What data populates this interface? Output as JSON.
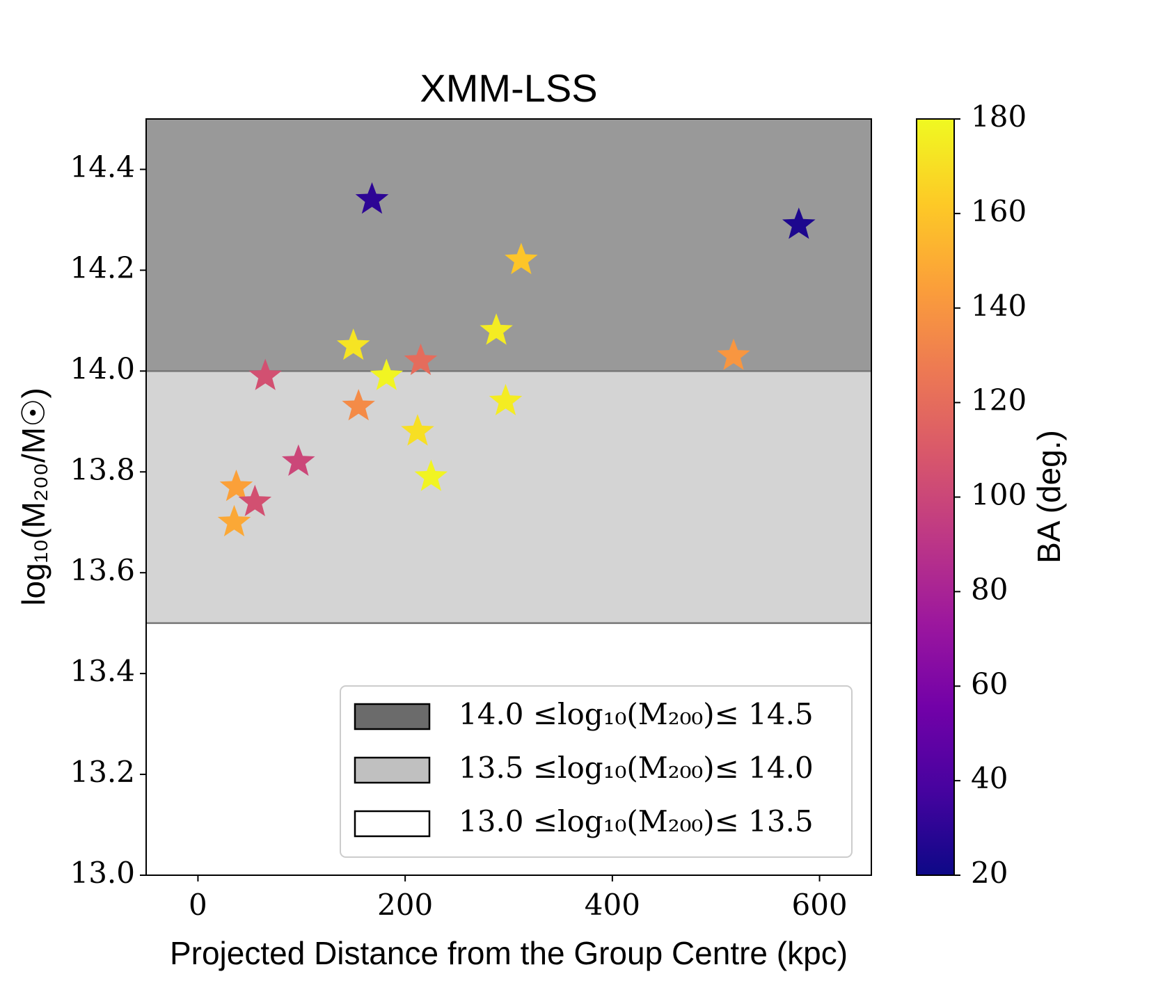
{
  "chart_data": {
    "type": "scatter",
    "title": "XMM-LSS",
    "x_label": "Projected Distance from the Group Centre (kpc)",
    "y_label": "log₁₀(M₂₀₀/M☉)",
    "colorbar_label": "BA (deg.)",
    "xlim": [
      -50,
      650
    ],
    "xticks": [
      0,
      200,
      400,
      600
    ],
    "ylim": [
      13.0,
      14.5
    ],
    "yticks": [
      {
        "value": 13.0,
        "label": "13.0"
      },
      13.2,
      13.4,
      13.6,
      13.8,
      {
        "value": 14.0,
        "label": "14.0"
      },
      14.2,
      14.4
    ],
    "clim": [
      20,
      180
    ],
    "cticks": [
      20,
      40,
      60,
      80,
      100,
      120,
      140,
      160,
      180
    ],
    "colormap": [
      "#0d0887",
      "#46039f",
      "#7201a8",
      "#9c179e",
      "#bd3786",
      "#d8576b",
      "#ed7953",
      "#fb9f3a",
      "#fdca26",
      "#f0f921"
    ],
    "bands": [
      {
        "name": "14.0 ≤log₁₀(M₂₀₀)≤ 14.5",
        "range": [
          14.0,
          14.5
        ],
        "color": "#999999",
        "legend_color": "#6b6b6b"
      },
      {
        "name": "13.5 ≤log₁₀(M₂₀₀)≤ 14.0",
        "range": [
          13.5,
          14.0
        ],
        "color": "#d4d4d4",
        "legend_color": "#c0c0c0"
      },
      {
        "name": "13.0 ≤log₁₀(M₂₀₀)≤ 13.5",
        "range": [
          13.0,
          13.5
        ],
        "color": "#ffffff",
        "legend_color": "#ffffff"
      }
    ],
    "legend": "lower right",
    "series": [
      {
        "x": [
          168,
          580,
          312,
          288,
          150,
          215,
          517,
          65,
          182,
          297,
          155,
          212,
          97,
          225,
          37,
          55,
          35
        ],
        "values": [
          14.34,
          14.29,
          14.22,
          14.08,
          14.05,
          14.02,
          14.03,
          13.99,
          13.99,
          13.94,
          13.93,
          13.88,
          13.82,
          13.79,
          13.77,
          13.74,
          13.7
        ],
        "c": [
          30,
          25,
          160,
          175,
          172,
          120,
          140,
          105,
          178,
          175,
          135,
          170,
          100,
          178,
          145,
          105,
          148
        ]
      }
    ]
  }
}
